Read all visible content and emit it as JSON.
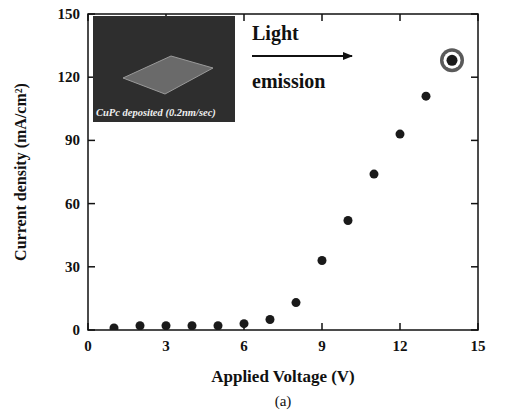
{
  "chart_data": {
    "type": "scatter",
    "xlabel": "Applied Voltage (V)",
    "ylabel": "Current density (mA/cm²)",
    "caption": "(a)",
    "annotations": [
      "Light",
      "emission",
      "CuPc deposited (0.2nm/sec)"
    ],
    "xlim": [
      0,
      15
    ],
    "xticks": [
      0,
      3,
      6,
      9,
      12,
      15
    ],
    "ylim": [
      0,
      150
    ],
    "yticks": [
      0,
      30,
      60,
      90,
      120,
      150
    ],
    "grid": false,
    "series": [
      {
        "color": "#1a1a1a",
        "marker": "circle",
        "x": [
          1,
          2,
          3,
          4,
          5,
          6,
          7,
          8,
          9,
          10,
          11,
          12,
          13
        ],
        "values": [
          1,
          2,
          2,
          2,
          2,
          3,
          5,
          13,
          33,
          52,
          74,
          93,
          111
        ]
      },
      {
        "color": "#1a1a1a",
        "marker": "bullseye",
        "x": [
          14
        ],
        "values": [
          128
        ]
      }
    ]
  }
}
